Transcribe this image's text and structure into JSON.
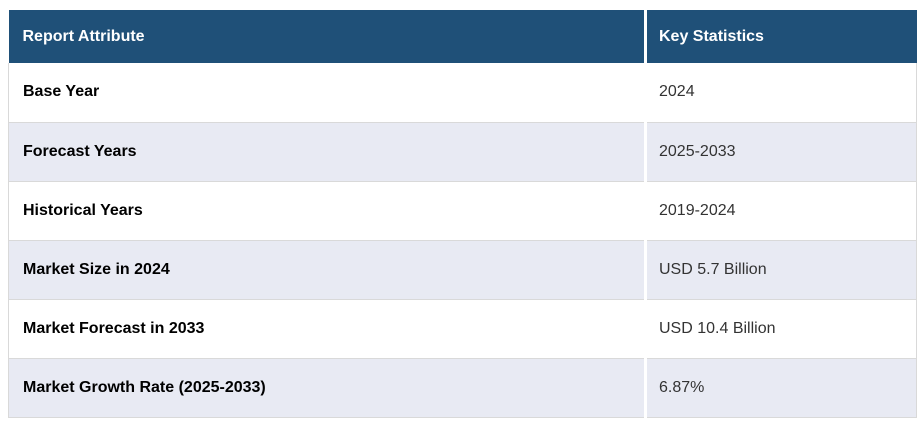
{
  "table": {
    "columns": [
      {
        "label": "Report Attribute"
      },
      {
        "label": "Key Statistics"
      }
    ],
    "rows": [
      {
        "attribute": "Base Year",
        "value": "2024"
      },
      {
        "attribute": "Forecast Years",
        "value": "2025-2033"
      },
      {
        "attribute": "Historical Years",
        "value": "2019-2024"
      },
      {
        "attribute": "Market Size in 2024",
        "value": "USD 5.7 Billion"
      },
      {
        "attribute": "Market Forecast in 2033",
        "value": "USD 10.4 Billion"
      },
      {
        "attribute": "Market Growth Rate (2025-2033)",
        "value": "6.87%"
      }
    ],
    "colors": {
      "header_bg": "#1F5078",
      "header_text": "#FFFFFF",
      "row_bg": "#FFFFFF",
      "row_alt_bg": "#E8EAF3",
      "border": "#D9D9D9",
      "attribute_text": "#000000",
      "value_text": "#333333"
    }
  },
  "chart_data": {
    "type": "table",
    "title": "",
    "columns": [
      "Report Attribute",
      "Key Statistics"
    ],
    "rows": [
      [
        "Base Year",
        "2024"
      ],
      [
        "Forecast Years",
        "2025-2033"
      ],
      [
        "Historical Years",
        "2019-2024"
      ],
      [
        "Market Size in 2024",
        "USD 5.7 Billion"
      ],
      [
        "Market Forecast in 2033",
        "USD 10.4 Billion"
      ],
      [
        "Market Growth Rate (2025-2033)",
        "6.87%"
      ]
    ]
  }
}
